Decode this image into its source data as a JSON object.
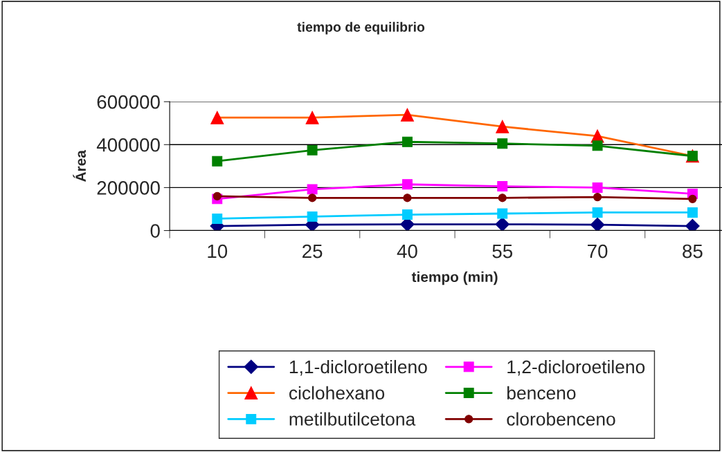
{
  "chart_data": {
    "type": "line",
    "title": "tiempo de equilibrio",
    "xlabel": "tiempo (min)",
    "ylabel": "Área",
    "categories": [
      "10",
      "25",
      "40",
      "55",
      "70",
      "85"
    ],
    "series": [
      {
        "name": "1,1-dicloroetileno",
        "color": "#000080",
        "marker": "diamond",
        "values": [
          21000,
          27000,
          29000,
          29000,
          27000,
          21000
        ]
      },
      {
        "name": "1,2-dicloroetileno",
        "color": "#ff00ff",
        "marker": "square",
        "values": [
          147000,
          192000,
          215000,
          206000,
          200000,
          171000
        ]
      },
      {
        "name": "ciclohexano",
        "color": "#ff6600",
        "marker": "triangle",
        "values": [
          526000,
          526000,
          539000,
          484000,
          440000,
          347000
        ]
      },
      {
        "name": "benceno",
        "color": "#008000",
        "marker": "square",
        "values": [
          323000,
          374000,
          413000,
          405000,
          395000,
          347000
        ]
      },
      {
        "name": "metilbutilcetona",
        "color": "#00ccff",
        "marker": "square",
        "values": [
          55000,
          65000,
          74000,
          79000,
          84000,
          84000
        ]
      },
      {
        "name": "clorobenceno",
        "color": "#800000",
        "marker": "circle",
        "values": [
          160000,
          152000,
          152000,
          152000,
          156000,
          147000
        ]
      }
    ],
    "ylim": [
      0,
      600000
    ],
    "yticks": [
      0,
      200000,
      400000,
      600000
    ],
    "grid": "y",
    "legend": "bottom"
  }
}
